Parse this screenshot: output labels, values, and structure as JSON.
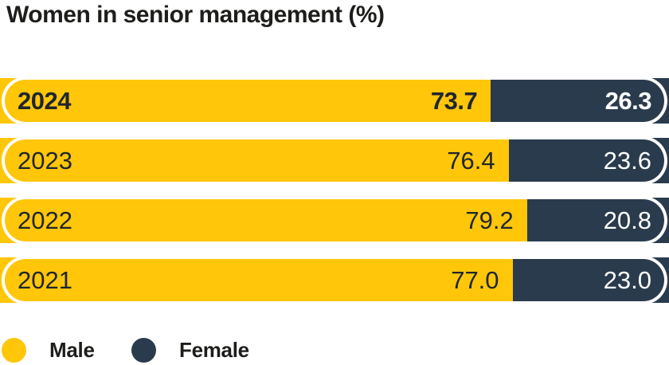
{
  "title": "Women in senior management (%)",
  "colors": {
    "male": "#FFC60A",
    "female": "#2A3B4D",
    "text_dark": "#1D1D1B",
    "value_on_male": "#20262E",
    "value_on_female": "#FFFFFF",
    "background": "#FFFFFF"
  },
  "legend": [
    {
      "label": "Male",
      "color": "#FFC60A"
    },
    {
      "label": "Female",
      "color": "#2A3B4D"
    }
  ],
  "chart_data": {
    "type": "bar",
    "subtype": "horizontal-stacked-100-percent",
    "title": "Women in senior management (%)",
    "categories": [
      "2024",
      "2023",
      "2022",
      "2021"
    ],
    "series": [
      {
        "name": "Male",
        "values": [
          73.7,
          76.4,
          79.2,
          77.0
        ]
      },
      {
        "name": "Female",
        "values": [
          26.3,
          23.6,
          20.8,
          23.0
        ]
      }
    ],
    "rows": [
      {
        "year": "2024",
        "male": "73.7",
        "female": "26.3",
        "emphasized": true
      },
      {
        "year": "2023",
        "male": "76.4",
        "female": "23.6",
        "emphasized": false
      },
      {
        "year": "2022",
        "male": "79.2",
        "female": "20.8",
        "emphasized": false
      },
      {
        "year": "2021",
        "male": "77.0",
        "female": "23.0",
        "emphasized": false
      }
    ],
    "xlim": [
      0,
      100
    ],
    "value_labels": "inside-end",
    "legend_position": "bottom-left",
    "grid": false,
    "axes_visible": false
  }
}
